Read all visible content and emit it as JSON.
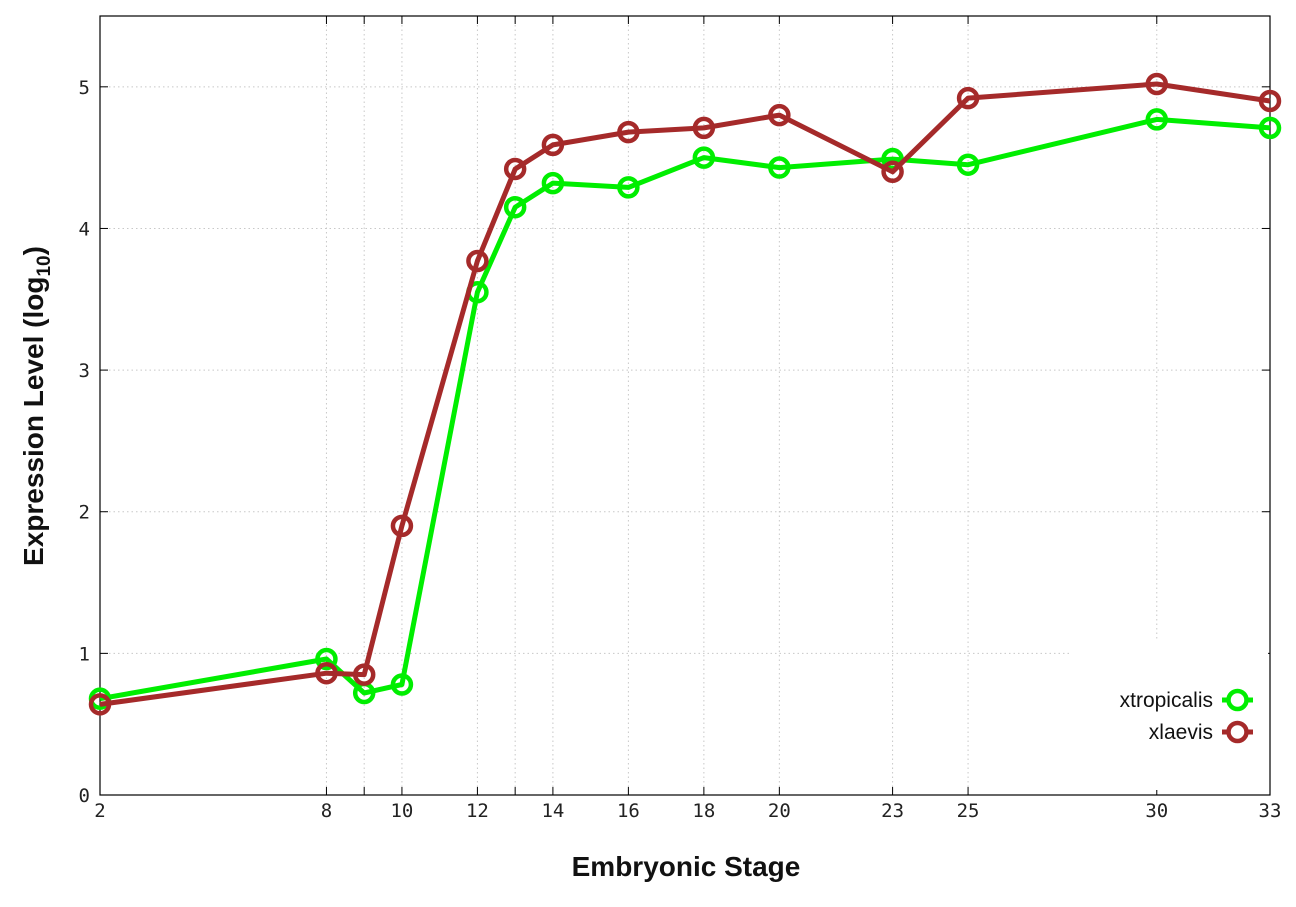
{
  "chart_data": {
    "type": "line",
    "xlabel": "Embryonic Stage",
    "ylabel": "Expression Level (log",
    "ylabel_sub": "10",
    "ylabel_close": ")",
    "x_categories": [
      "2",
      "8",
      "9",
      "10",
      "12",
      "13",
      "14",
      "16",
      "18",
      "20",
      "23",
      "25",
      "30",
      "33"
    ],
    "x_tick_labels": [
      "2",
      "8",
      "10",
      "12",
      "14",
      "16",
      "18",
      "20",
      "23",
      "25",
      "30",
      "33"
    ],
    "y_ticks": [
      "0",
      "1",
      "2",
      "3",
      "4",
      "5"
    ],
    "ylim": [
      0,
      5.5
    ],
    "grid": true,
    "legend_position": "bottom-right",
    "series": [
      {
        "name": "xtropicalis",
        "color": "#00ee00",
        "x": [
          2,
          8,
          9,
          10,
          12,
          13,
          14,
          16,
          18,
          20,
          23,
          25,
          30,
          33
        ],
        "values": [
          0.68,
          0.96,
          0.72,
          0.78,
          3.55,
          4.15,
          4.32,
          4.29,
          4.5,
          4.43,
          4.49,
          4.45,
          4.77,
          4.71
        ]
      },
      {
        "name": "xlaevis",
        "color": "#a52a2a",
        "x": [
          2,
          8,
          9,
          10,
          12,
          13,
          14,
          16,
          18,
          20,
          23,
          25,
          30,
          33
        ],
        "values": [
          0.64,
          0.86,
          0.85,
          1.9,
          3.77,
          4.42,
          4.59,
          4.68,
          4.71,
          4.8,
          4.4,
          4.92,
          5.02,
          4.9
        ]
      }
    ]
  }
}
